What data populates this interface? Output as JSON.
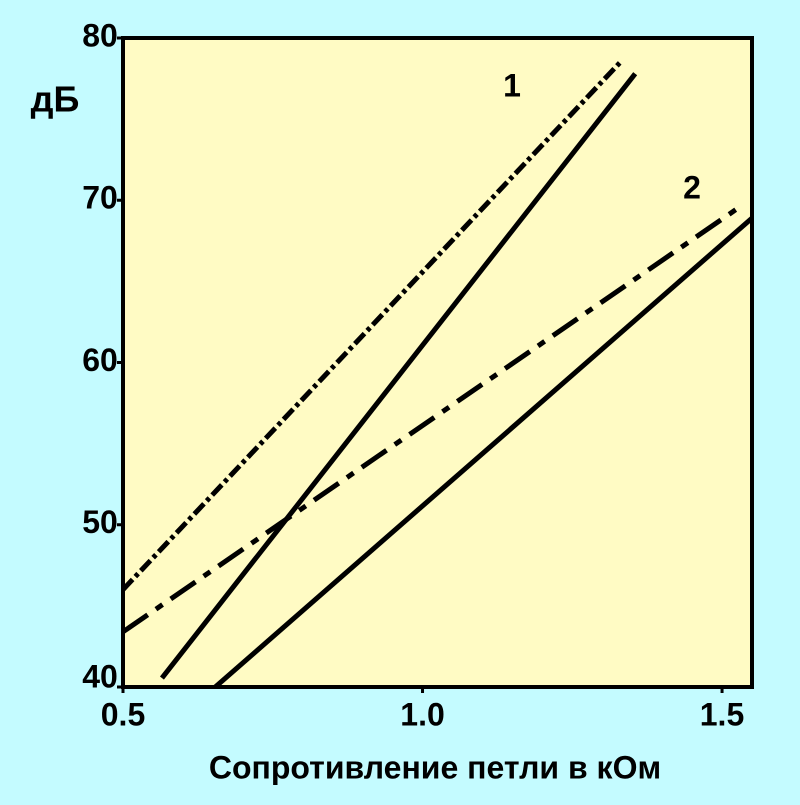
{
  "chart_data": {
    "type": "line",
    "y_label": "дБ",
    "x_label": "Сопротивление петли в кОм",
    "xlim": [
      0.5,
      1.55
    ],
    "xticks": [
      0.5,
      {
        "value": 1,
        "label": "1.0"
      },
      1.5
    ],
    "ylim": [
      40,
      80
    ],
    "yticks": [
      40,
      50,
      60,
      70,
      80
    ],
    "series": [
      {
        "color": "#000000",
        "style": "solid",
        "x": [
          0.565,
          1.355
        ],
        "values": [
          40.55,
          77.8
        ]
      },
      {
        "color": "#000000",
        "style": "dotted",
        "x": [
          0.5,
          1.33
        ],
        "values": [
          46.0,
          78.5
        ]
      },
      {
        "color": "#000000",
        "style": "dashdot",
        "x": [
          0.5,
          1.53
        ],
        "values": [
          43.4,
          69.6
        ]
      },
      {
        "color": "#000000",
        "style": "solid",
        "x": [
          0.654,
          1.55
        ],
        "values": [
          40,
          68.9
        ]
      }
    ],
    "annotations": [
      "1",
      "2"
    ]
  }
}
